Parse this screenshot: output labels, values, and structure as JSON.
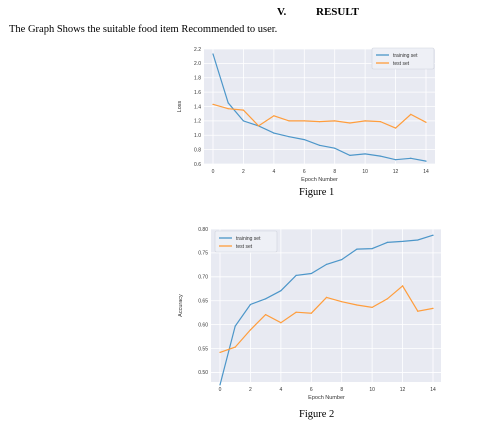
{
  "section": {
    "number": "V.",
    "title": "RESULT"
  },
  "intro_text": "The Graph Shows the suitable food item Recommended to user.",
  "figures": [
    {
      "caption": "Figure 1"
    },
    {
      "caption": "Figure 2"
    }
  ],
  "colors": {
    "training": "#4c96c9",
    "test": "#ff9d3c",
    "plot_bg": "#e8eaf2",
    "grid": "#ffffff"
  },
  "chart_data": [
    {
      "type": "line",
      "title": "",
      "xlabel": "Epoch Number",
      "ylabel": "Loss",
      "xlim": [
        0,
        14
      ],
      "ylim": [
        0.6,
        2.2
      ],
      "xticks": [
        0,
        2,
        4,
        6,
        8,
        10,
        12,
        14
      ],
      "yticks": [
        0.6,
        0.8,
        1.0,
        1.2,
        1.4,
        1.6,
        1.8,
        2.0,
        2.2
      ],
      "ytick_labels": [
        "0.6",
        "0.8",
        "1.0",
        "1.2",
        "1.4",
        "1.6",
        "1.8",
        "2.0",
        "2.2"
      ],
      "legend": "top-right",
      "grid": true,
      "x": [
        0,
        1,
        2,
        3,
        4,
        5,
        6,
        7,
        8,
        9,
        10,
        11,
        12,
        13,
        14
      ],
      "series": [
        {
          "name": "training set",
          "values": [
            2.13,
            1.45,
            1.2,
            1.13,
            1.03,
            0.98,
            0.94,
            0.86,
            0.82,
            0.72,
            0.74,
            0.71,
            0.66,
            0.68,
            0.64
          ]
        },
        {
          "name": "test set",
          "values": [
            1.43,
            1.37,
            1.35,
            1.13,
            1.27,
            1.2,
            1.2,
            1.19,
            1.2,
            1.17,
            1.2,
            1.19,
            1.1,
            1.29,
            1.18
          ]
        }
      ]
    },
    {
      "type": "line",
      "title": "",
      "xlabel": "Epoch Number",
      "ylabel": "Accuracy",
      "xlim": [
        0,
        14
      ],
      "ylim": [
        0.48,
        0.8
      ],
      "xticks": [
        0,
        2,
        4,
        6,
        8,
        10,
        12,
        14
      ],
      "yticks": [
        0.5,
        0.55,
        0.6,
        0.65,
        0.7,
        0.75,
        0.8
      ],
      "ytick_labels": [
        "0.50",
        "0.55",
        "0.60",
        "0.65",
        "0.70",
        "0.75",
        "0.80"
      ],
      "legend": "top-left",
      "grid": true,
      "x": [
        0,
        1,
        2,
        3,
        4,
        5,
        6,
        7,
        8,
        9,
        10,
        11,
        12,
        13,
        14
      ],
      "series": [
        {
          "name": "training set",
          "values": [
            0.474,
            0.597,
            0.642,
            0.654,
            0.671,
            0.703,
            0.707,
            0.726,
            0.736,
            0.758,
            0.759,
            0.772,
            0.774,
            0.777,
            0.787
          ]
        },
        {
          "name": "test set",
          "values": [
            0.542,
            0.553,
            0.589,
            0.621,
            0.604,
            0.626,
            0.624,
            0.657,
            0.648,
            0.641,
            0.636,
            0.654,
            0.681,
            0.628,
            0.634
          ]
        }
      ]
    }
  ]
}
